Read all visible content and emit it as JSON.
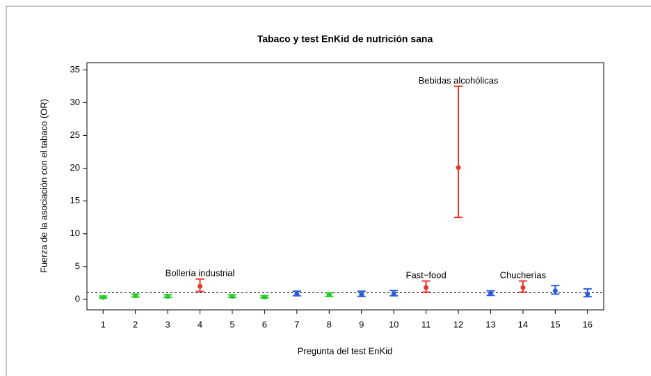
{
  "chart_data": {
    "type": "errorbar",
    "title": "Tabaco y test EnKid de nutrición sana",
    "xlabel": "Pregunta del test EnKid",
    "ylabel": "Fuerza de la asociación con el tabaco (OR)",
    "x": [
      1,
      2,
      3,
      4,
      5,
      6,
      7,
      8,
      9,
      10,
      11,
      12,
      13,
      14,
      15,
      16
    ],
    "values": [
      0.3,
      0.55,
      0.45,
      2.0,
      0.45,
      0.35,
      0.85,
      0.7,
      0.75,
      0.9,
      1.8,
      20.1,
      0.9,
      1.8,
      1.3,
      0.8
    ],
    "lower": [
      0.2,
      0.35,
      0.3,
      1.2,
      0.3,
      0.2,
      0.55,
      0.45,
      0.45,
      0.55,
      1.1,
      12.5,
      0.6,
      1.1,
      0.8,
      0.4
    ],
    "upper": [
      0.5,
      0.8,
      0.7,
      3.1,
      0.7,
      0.55,
      1.25,
      1.0,
      1.25,
      1.35,
      2.8,
      32.5,
      1.3,
      2.8,
      2.1,
      1.6
    ],
    "colors": [
      "#22cc22",
      "#22cc22",
      "#22cc22",
      "#e8372c",
      "#22cc22",
      "#22cc22",
      "#2a5bd7",
      "#22cc22",
      "#2a5bd7",
      "#2a5bd7",
      "#e8372c",
      "#e8372c",
      "#2a5bd7",
      "#e8372c",
      "#2a5bd7",
      "#2a5bd7"
    ],
    "reference_line": 1,
    "annotations": [
      {
        "text": "Bollería industrial",
        "x": 4,
        "y": 3.9
      },
      {
        "text": "Fast−food",
        "x": 11,
        "y": 3.6
      },
      {
        "text": "Bebidas alcohólicas",
        "x": 12,
        "y": 33.3
      },
      {
        "text": "Chucherías",
        "x": 14,
        "y": 3.6
      }
    ],
    "xlim": [
      0.5,
      16.5
    ],
    "xticks": [
      1,
      2,
      3,
      4,
      5,
      6,
      7,
      8,
      9,
      10,
      11,
      12,
      13,
      14,
      15,
      16
    ],
    "ylim": [
      -1.6,
      36.1
    ],
    "yticks": [
      0,
      5,
      10,
      15,
      20,
      25,
      30,
      35
    ]
  }
}
